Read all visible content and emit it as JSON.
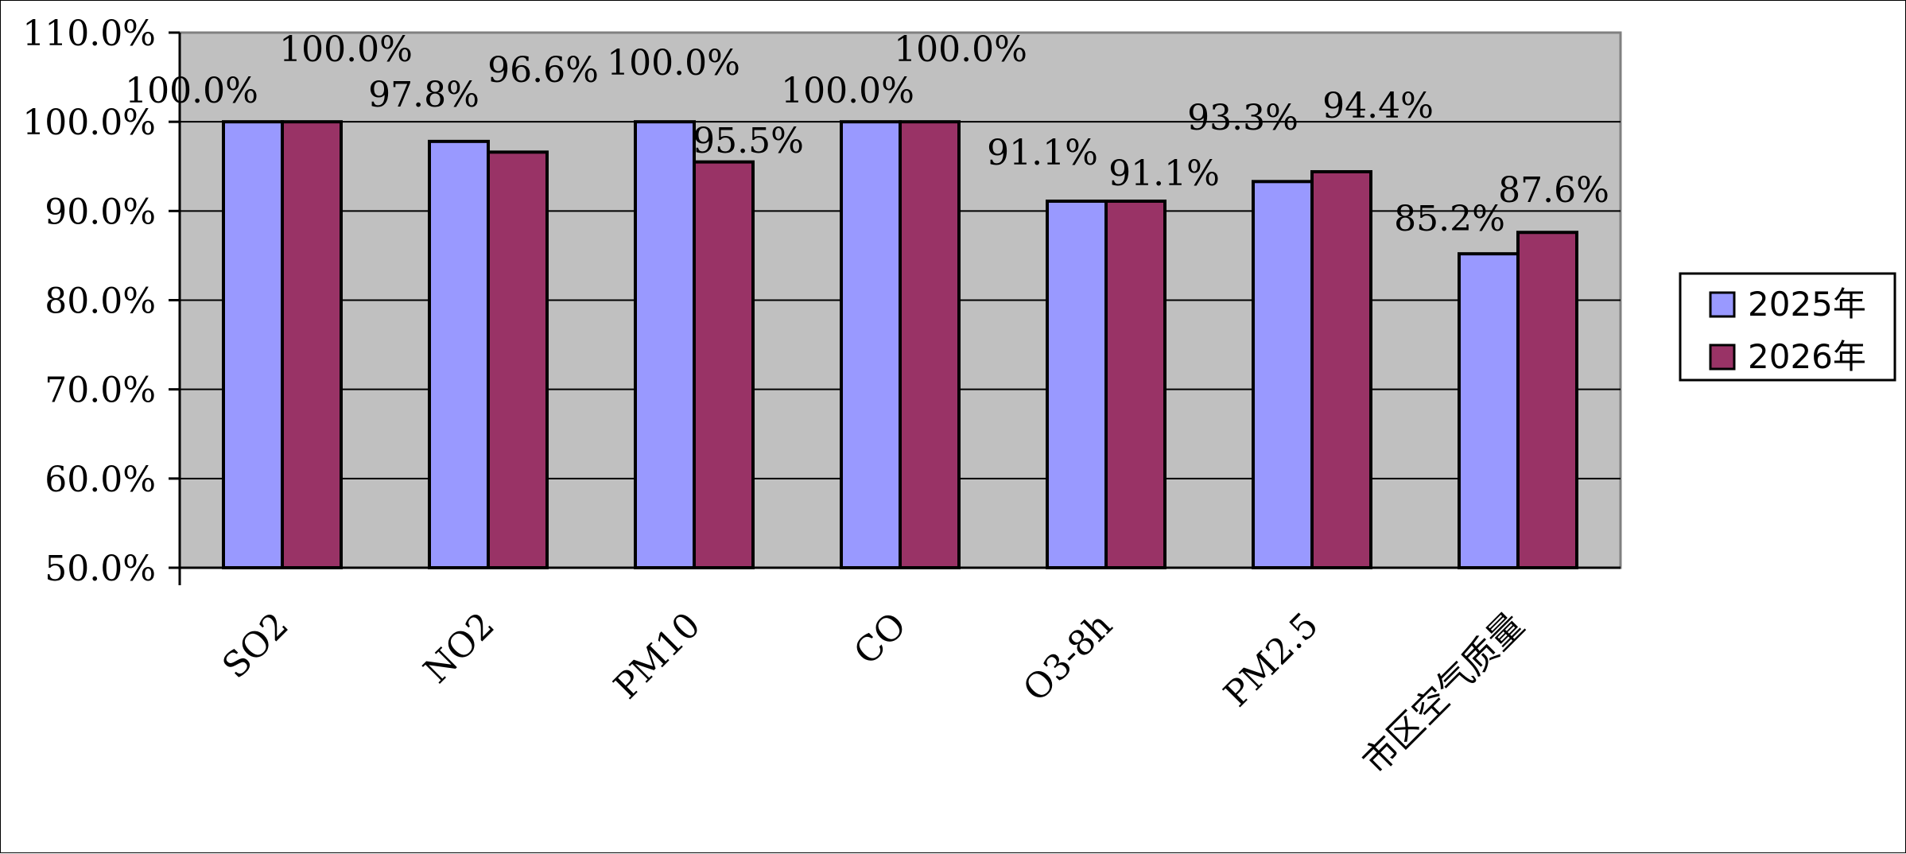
{
  "chart_data": {
    "type": "bar",
    "categories": [
      "SO2",
      "NO2",
      "PM10",
      "CO",
      "O3-8h",
      "PM2.5",
      "市区空气质量"
    ],
    "series": [
      {
        "name": "2025年",
        "values": [
          100.0,
          97.8,
          100.0,
          100.0,
          91.1,
          93.3,
          85.2
        ],
        "labels": [
          "100.0%",
          "97.8%",
          "100.0%",
          "100.0%",
          "91.1%",
          "93.3%",
          "85.2%"
        ]
      },
      {
        "name": "2026年",
        "values": [
          100.0,
          96.6,
          95.5,
          100.0,
          91.1,
          94.4,
          87.6
        ],
        "labels": [
          "100.0%",
          "96.6%",
          "95.5%",
          "100.0%",
          "91.1%",
          "94.4%",
          "87.6%"
        ]
      }
    ],
    "ylim": [
      50,
      110
    ],
    "y_ticks": [
      50,
      60,
      70,
      80,
      90,
      100,
      110
    ],
    "y_tick_labels": [
      "50.0%",
      "60.0%",
      "70.0%",
      "80.0%",
      "90.0%",
      "100.0%",
      "110.0%"
    ],
    "grid": true,
    "legend_position": "right",
    "colors": {
      "plot_background": "#c0c0c0",
      "series": [
        "#9999ff",
        "#993366"
      ],
      "gridline": "#000000"
    }
  }
}
